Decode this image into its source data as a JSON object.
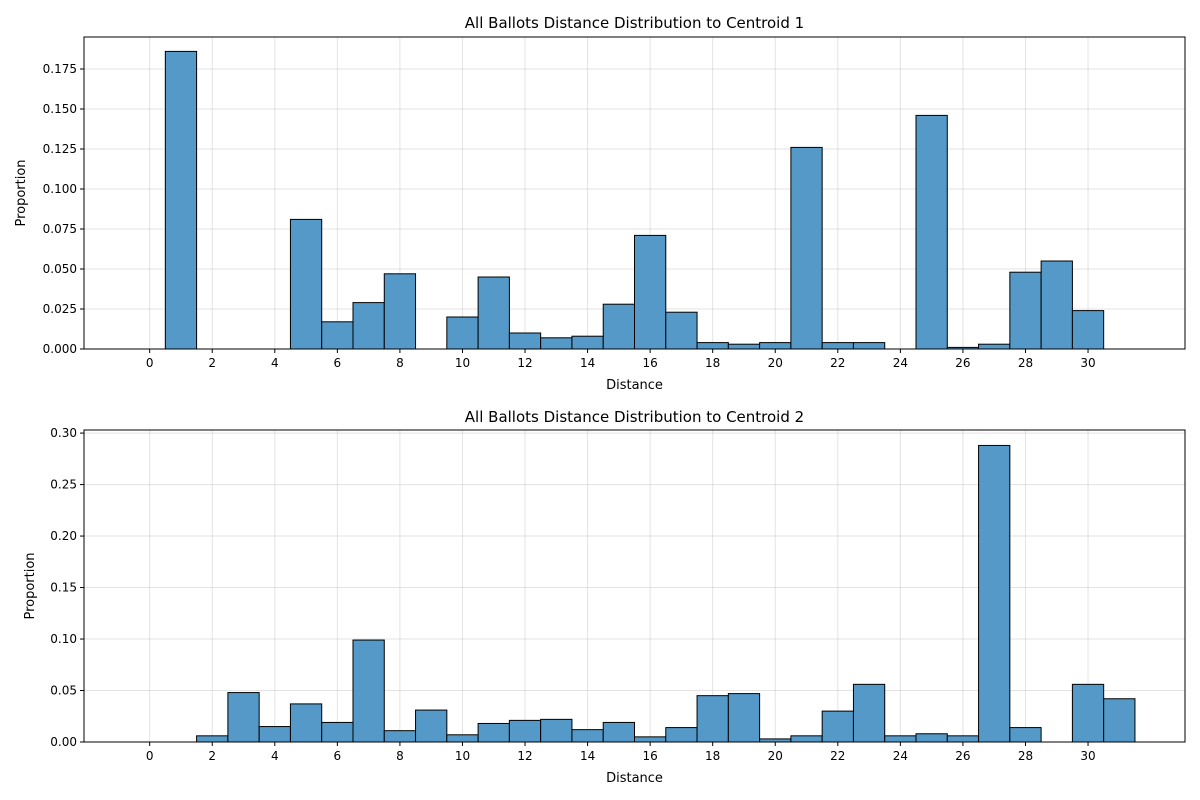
{
  "chart_data": [
    {
      "type": "bar",
      "title": "All Ballots Distance Distribution to Centroid 1",
      "xlabel": "Distance",
      "ylabel": "Proportion",
      "bin_width": 1,
      "bin_starts": [
        -0.5,
        0.5,
        1.5,
        2.5,
        3.5,
        4.5,
        5.5,
        6.5,
        7.5,
        8.5,
        9.5,
        10.5,
        11.5,
        12.5,
        13.5,
        14.5,
        15.5,
        16.5,
        17.5,
        18.5,
        19.5,
        20.5,
        21.5,
        22.5,
        23.5,
        24.5,
        25.5,
        26.5,
        27.5,
        28.5,
        29.5,
        30.5
      ],
      "values": [
        0.0,
        0.186,
        0.0,
        0.0,
        0.0,
        0.081,
        0.017,
        0.029,
        0.047,
        0.0,
        0.02,
        0.045,
        0.01,
        0.007,
        0.008,
        0.028,
        0.071,
        0.023,
        0.004,
        0.003,
        0.004,
        0.126,
        0.004,
        0.004,
        0.0,
        0.146,
        0.001,
        0.003,
        0.048,
        0.055,
        0.024,
        0.0
      ],
      "xlim": [
        -2.1,
        33.1
      ],
      "ylim": [
        0,
        0.195
      ],
      "xticks": [
        0,
        2,
        4,
        6,
        8,
        10,
        12,
        14,
        16,
        18,
        20,
        22,
        24,
        26,
        28,
        30
      ],
      "yticks": [
        0.0,
        0.025,
        0.05,
        0.075,
        0.1,
        0.125,
        0.15,
        0.175
      ],
      "xtick_labels": [
        "0",
        "2",
        "4",
        "6",
        "8",
        "10",
        "12",
        "14",
        "16",
        "18",
        "20",
        "22",
        "24",
        "26",
        "28",
        "30"
      ],
      "ytick_labels": [
        "0.000",
        "0.025",
        "0.050",
        "0.075",
        "0.100",
        "0.125",
        "0.150",
        "0.175"
      ],
      "grid": true
    },
    {
      "type": "bar",
      "title": "All Ballots Distance Distribution to Centroid 2",
      "xlabel": "Distance",
      "ylabel": "Proportion",
      "bin_width": 1,
      "bin_starts": [
        -0.5,
        0.5,
        1.5,
        2.5,
        3.5,
        4.5,
        5.5,
        6.5,
        7.5,
        8.5,
        9.5,
        10.5,
        11.5,
        12.5,
        13.5,
        14.5,
        15.5,
        16.5,
        17.5,
        18.5,
        19.5,
        20.5,
        21.5,
        22.5,
        23.5,
        24.5,
        25.5,
        26.5,
        27.5,
        28.5,
        29.5,
        30.5
      ],
      "values": [
        0.0,
        0.0,
        0.006,
        0.048,
        0.015,
        0.037,
        0.019,
        0.099,
        0.011,
        0.031,
        0.007,
        0.018,
        0.021,
        0.022,
        0.012,
        0.019,
        0.005,
        0.014,
        0.045,
        0.047,
        0.003,
        0.006,
        0.03,
        0.056,
        0.006,
        0.008,
        0.006,
        0.288,
        0.014,
        0.0,
        0.056,
        0.042
      ],
      "xlim": [
        -2.1,
        33.1
      ],
      "ylim": [
        0,
        0.303
      ],
      "xticks": [
        0,
        2,
        4,
        6,
        8,
        10,
        12,
        14,
        16,
        18,
        20,
        22,
        24,
        26,
        28,
        30
      ],
      "yticks": [
        0.0,
        0.05,
        0.1,
        0.15,
        0.2,
        0.25,
        0.3
      ],
      "xtick_labels": [
        "0",
        "2",
        "4",
        "6",
        "8",
        "10",
        "12",
        "14",
        "16",
        "18",
        "20",
        "22",
        "24",
        "26",
        "28",
        "30"
      ],
      "ytick_labels": [
        "0.00",
        "0.05",
        "0.10",
        "0.15",
        "0.20",
        "0.25",
        "0.30"
      ],
      "grid": true
    }
  ],
  "style": {
    "bar_fill": "#5599c9",
    "bar_edge": "#000000",
    "background": "#ffffff",
    "grid_color": "#b0b0b0"
  }
}
